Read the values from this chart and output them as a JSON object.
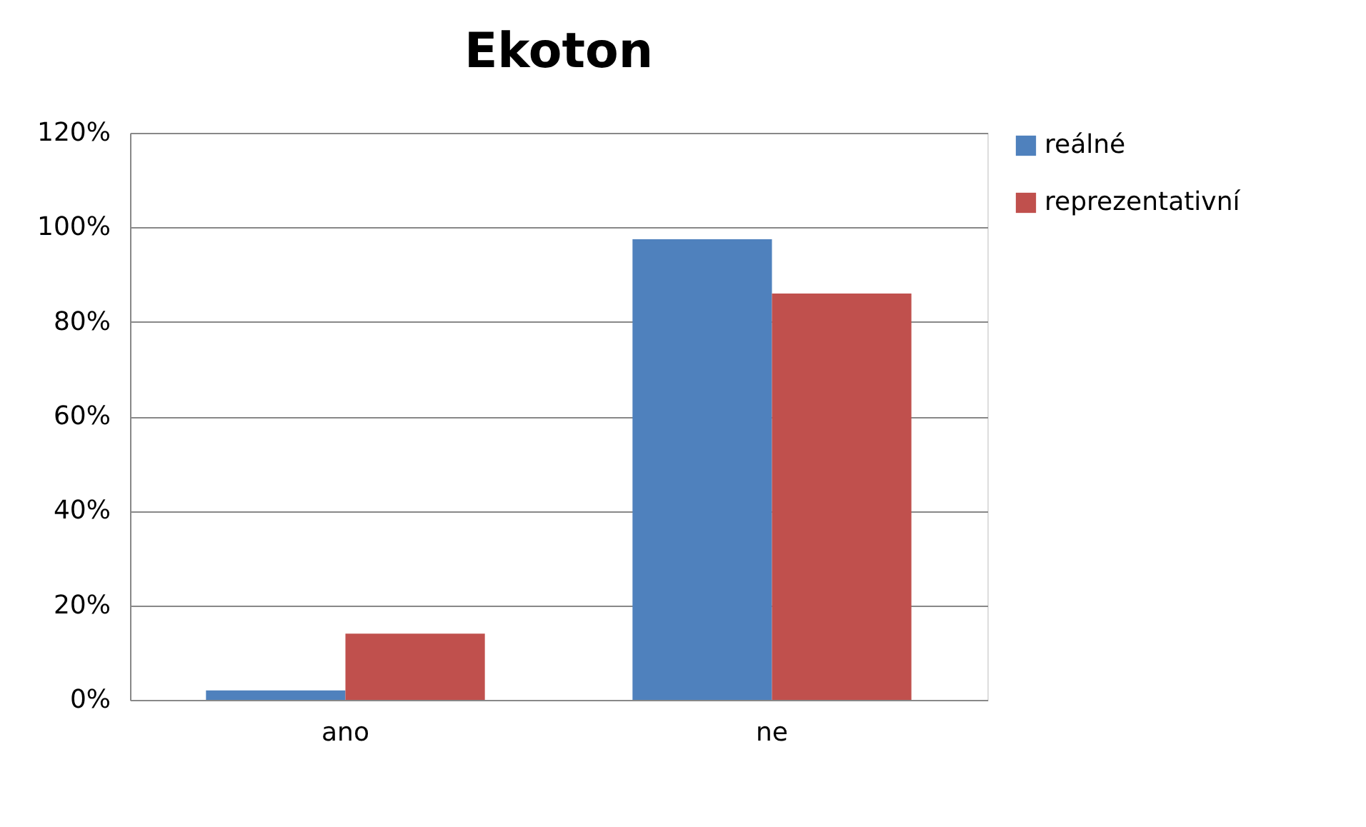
{
  "chart_data": {
    "type": "bar",
    "title": "Ekoton",
    "categories": [
      "ano",
      "ne"
    ],
    "series": [
      {
        "name": "reálné",
        "color": "#4f81bd",
        "values": [
          2,
          97.5
        ]
      },
      {
        "name": "reprezentativní",
        "color": "#c0504d",
        "values": [
          14,
          86
        ]
      }
    ],
    "ylim": [
      0,
      120
    ],
    "yticks": [
      {
        "value": 0,
        "label": "0%"
      },
      {
        "value": 20,
        "label": "20%"
      },
      {
        "value": 40,
        "label": "40%"
      },
      {
        "value": 60,
        "label": "60%"
      },
      {
        "value": 80,
        "label": "80%"
      },
      {
        "value": 100,
        "label": "100%"
      },
      {
        "value": 120,
        "label": "120%"
      }
    ],
    "grid": "y",
    "legend": "right"
  }
}
